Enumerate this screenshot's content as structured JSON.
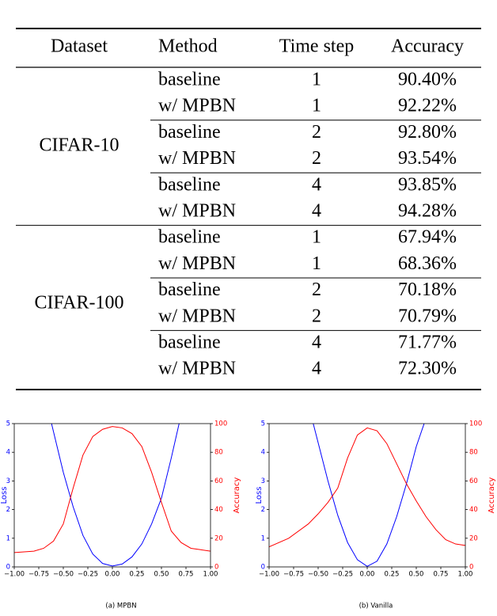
{
  "table": {
    "header": [
      "Dataset",
      "Method",
      "Time step",
      "Accuracy"
    ],
    "groups": [
      {
        "dataset": "CIFAR-10",
        "rows": [
          [
            "baseline",
            1,
            "90.40%"
          ],
          [
            "w/ MPBN",
            1,
            "92.22%"
          ],
          [
            "baseline",
            2,
            "92.80%"
          ],
          [
            "w/ MPBN",
            2,
            "93.54%"
          ],
          [
            "baseline",
            4,
            "93.85%"
          ],
          [
            "w/ MPBN",
            4,
            "94.28%"
          ]
        ]
      },
      {
        "dataset": "CIFAR-100",
        "rows": [
          [
            "baseline",
            1,
            "67.94%"
          ],
          [
            "w/ MPBN",
            1,
            "68.36%"
          ],
          [
            "baseline",
            2,
            "70.18%"
          ],
          [
            "w/ MPBN",
            2,
            "70.79%"
          ],
          [
            "baseline",
            4,
            "71.77%"
          ],
          [
            "w/ MPBN",
            4,
            "72.30%"
          ]
        ]
      }
    ]
  },
  "chart_data": [
    {
      "type": "line",
      "caption": "(a) MPBN",
      "ylabel": "Loss",
      "y2label": "Accuracy",
      "xlim": [
        -1,
        1
      ],
      "ylim": [
        0,
        5
      ],
      "y2lim": [
        0,
        100
      ],
      "xticks": [
        {
          "value": -1,
          "label": "−1.00"
        },
        {
          "value": -0.75,
          "label": "−0.75"
        },
        {
          "value": -0.5,
          "label": "−0.50"
        },
        {
          "value": -0.25,
          "label": "−0.25"
        },
        {
          "value": 0,
          "label": "0.00"
        },
        {
          "value": 0.25,
          "label": "0.25"
        },
        {
          "value": 0.5,
          "label": "0.50"
        },
        {
          "value": 0.75,
          "label": "0.75"
        },
        {
          "value": 1,
          "label": "1.00"
        }
      ],
      "yticks": [
        0,
        1,
        2,
        3,
        4,
        5
      ],
      "y2ticks": [
        0,
        20,
        40,
        60,
        80,
        100
      ],
      "series": [
        {
          "name": "Loss",
          "color": "#0000ff",
          "x": [
            -0.62,
            -0.5,
            -0.4,
            -0.3,
            -0.2,
            -0.1,
            0,
            0.1,
            0.2,
            0.3,
            0.4,
            0.5,
            0.6,
            0.68
          ],
          "values": [
            5,
            3.3,
            2.1,
            1.1,
            0.45,
            0.12,
            0.03,
            0.1,
            0.35,
            0.8,
            1.5,
            2.4,
            3.8,
            5
          ]
        },
        {
          "name": "Accuracy",
          "color": "#ff0000",
          "axis": "y2",
          "x": [
            -1,
            -0.8,
            -0.7,
            -0.6,
            -0.5,
            -0.4,
            -0.3,
            -0.2,
            -0.1,
            0,
            0.1,
            0.2,
            0.3,
            0.4,
            0.5,
            0.6,
            0.7,
            0.8,
            0.9,
            1
          ],
          "values": [
            10,
            11,
            13,
            18,
            30,
            55,
            78,
            91,
            96,
            98,
            97,
            93,
            84,
            66,
            45,
            25,
            17,
            13,
            12,
            11
          ]
        }
      ]
    },
    {
      "type": "line",
      "caption": "(b) Vanilla",
      "ylabel": "Loss",
      "y2label": "Accuracy",
      "xlim": [
        -1,
        1
      ],
      "ylim": [
        0,
        5
      ],
      "y2lim": [
        0,
        100
      ],
      "xticks": [
        {
          "value": -1,
          "label": "−1.00"
        },
        {
          "value": -0.75,
          "label": "−0.75"
        },
        {
          "value": -0.5,
          "label": "−0.50"
        },
        {
          "value": -0.25,
          "label": "−0.25"
        },
        {
          "value": 0,
          "label": "0.00"
        },
        {
          "value": 0.25,
          "label": "0.25"
        },
        {
          "value": 0.5,
          "label": "0.50"
        },
        {
          "value": 0.75,
          "label": "0.75"
        },
        {
          "value": 1,
          "label": "1.00"
        }
      ],
      "yticks": [
        0,
        1,
        2,
        3,
        4,
        5
      ],
      "y2ticks": [
        0,
        20,
        40,
        60,
        80,
        100
      ],
      "series": [
        {
          "name": "Loss",
          "color": "#0000ff",
          "x": [
            -0.55,
            -0.4,
            -0.3,
            -0.2,
            -0.1,
            0,
            0.1,
            0.2,
            0.3,
            0.4,
            0.5,
            0.58
          ],
          "values": [
            5,
            3.0,
            1.8,
            0.85,
            0.25,
            0.02,
            0.2,
            0.8,
            1.75,
            2.9,
            4.2,
            5
          ]
        },
        {
          "name": "Accuracy",
          "color": "#ff0000",
          "axis": "y2",
          "x": [
            -1,
            -0.8,
            -0.6,
            -0.5,
            -0.4,
            -0.3,
            -0.2,
            -0.1,
            0,
            0.1,
            0.2,
            0.3,
            0.4,
            0.5,
            0.6,
            0.7,
            0.8,
            0.9,
            1
          ],
          "values": [
            14,
            20,
            30,
            37,
            45,
            55,
            76,
            92,
            97,
            95,
            86,
            72,
            58,
            46,
            35,
            26,
            19,
            16,
            15
          ]
        }
      ]
    }
  ]
}
